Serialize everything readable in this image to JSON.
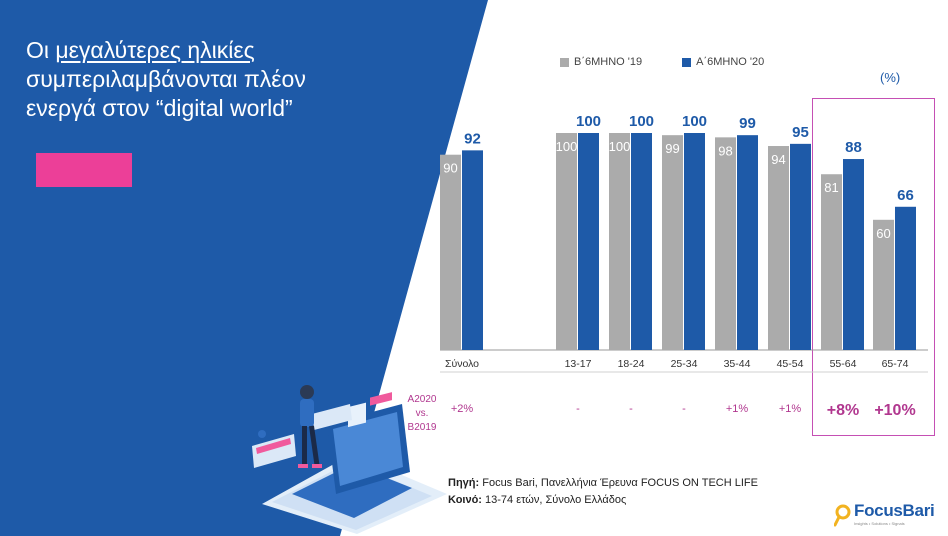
{
  "title": {
    "line1_prefix": "Οι ",
    "line1_underlined": "μεγαλύτερες ηλικίες",
    "line2": "συμπεριλαμβάνονται πλέον",
    "line3": "ενεργά στον “digital world”"
  },
  "percent_label": "(%)",
  "diff_label": {
    "line1": "A2020",
    "line2": "vs.",
    "line3": "B2019"
  },
  "source": {
    "label1": "Πηγή:",
    "text1": " Focus Bari, Πανελλήνια Έρευνα FOCUS ON TECH LIFE",
    "label2": "Κοινό:",
    "text2": " 13-74 ετών, Σύνολο Ελλάδος"
  },
  "logo": {
    "name": "FocusBari",
    "tagline": "Insights • Solutions • Signals"
  },
  "colors": {
    "blue": "#1e5aa8",
    "grey": "#ababab",
    "pink": "#ec3f98",
    "magenta": "#b1378f",
    "frame": "#c54fb4"
  },
  "chart_data": {
    "type": "bar",
    "categories": [
      "Σύνολο",
      "13-17",
      "18-24",
      "25-34",
      "35-44",
      "45-54",
      "55-64",
      "65-74"
    ],
    "series": [
      {
        "name": "Β΄6ΜΗΝΟ '19",
        "values": [
          90,
          100,
          100,
          99,
          98,
          94,
          81,
          60
        ]
      },
      {
        "name": "Α΄6ΜΗΝΟ '20",
        "values": [
          92,
          100,
          100,
          100,
          99,
          95,
          88,
          66
        ]
      }
    ],
    "differences": [
      "+2%",
      "-",
      "-",
      "-",
      "+1%",
      "+1%",
      "+8%",
      "+10%"
    ],
    "unit": "(%)",
    "ylim": [
      0,
      100
    ],
    "grid": false,
    "legend": "top"
  }
}
